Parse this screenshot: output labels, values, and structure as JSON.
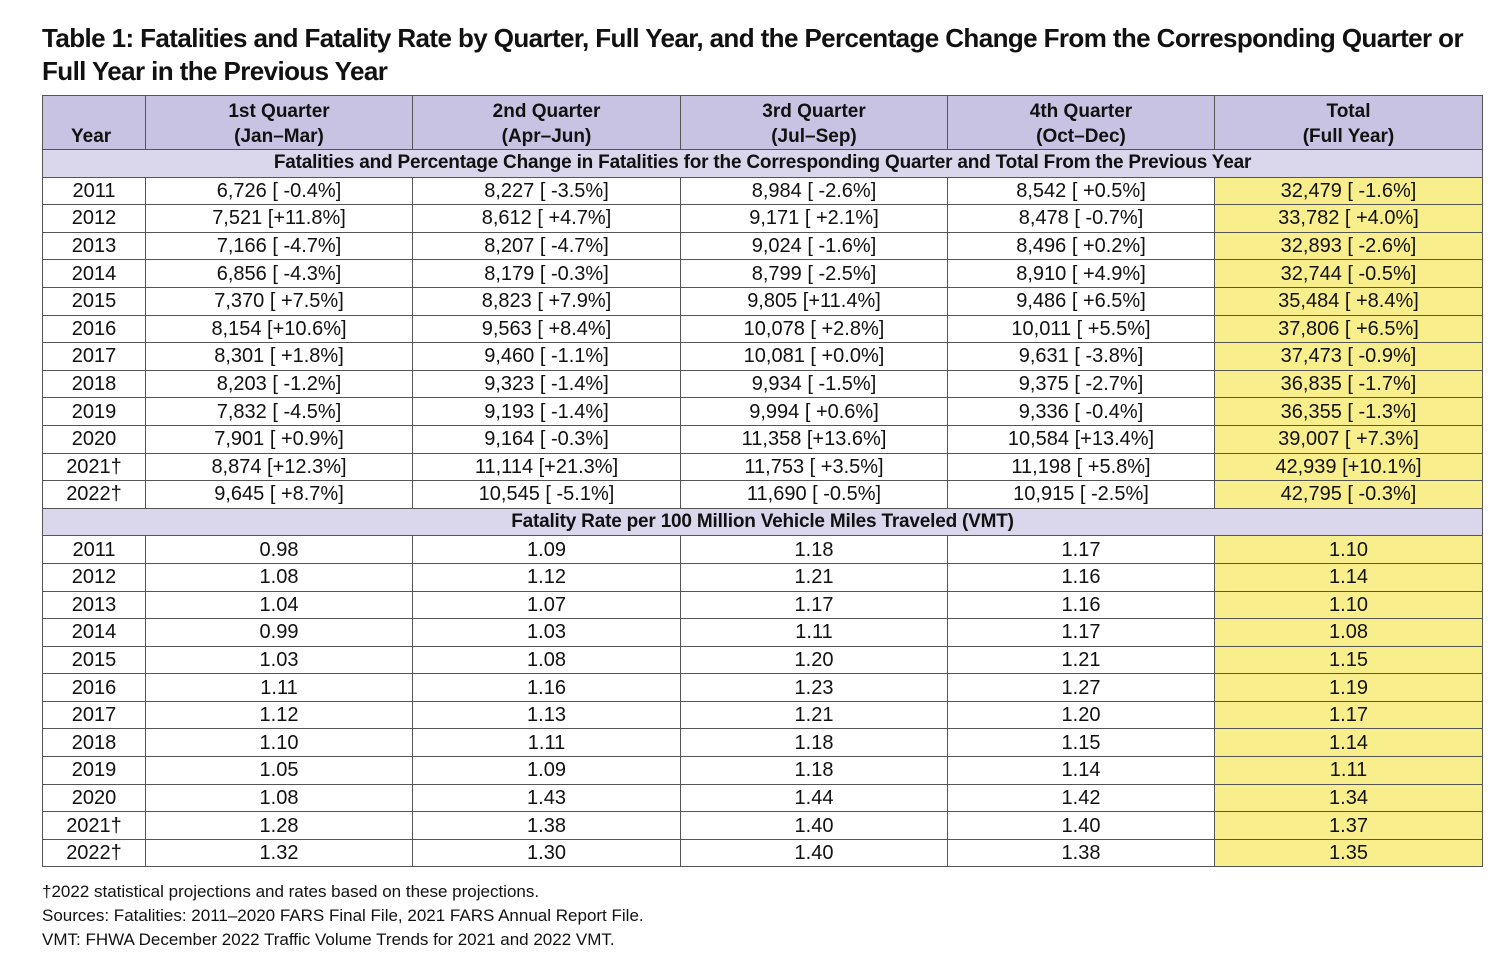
{
  "title": "Table 1: Fatalities and Fatality Rate by Quarter, Full Year, and the Percentage Change From the Corresponding Quarter or Full Year in the Previous Year",
  "table": {
    "header": [
      [
        "Year"
      ],
      [
        "1st Quarter",
        "(Jan–Mar)"
      ],
      [
        "2nd Quarter",
        "(Apr–Jun)"
      ],
      [
        "3rd Quarter",
        "(Jul–Sep)"
      ],
      [
        "4th Quarter",
        "(Oct–Dec)"
      ],
      [
        "Total",
        "(Full Year)"
      ]
    ],
    "sections": [
      {
        "title": "Fatalities and Percentage Change in Fatalities for the Corresponding Quarter and Total From the Previous Year",
        "rows": [
          [
            "2011",
            "6,726 [ -0.4%]",
            "8,227 [ -3.5%]",
            "8,984 [ -2.6%]",
            "8,542 [ +0.5%]",
            "32,479 [ -1.6%]"
          ],
          [
            "2012",
            "7,521 [+11.8%]",
            "8,612 [ +4.7%]",
            "9,171 [ +2.1%]",
            "8,478 [ -0.7%]",
            "33,782 [ +4.0%]"
          ],
          [
            "2013",
            "7,166 [ -4.7%]",
            "8,207 [ -4.7%]",
            "9,024 [ -1.6%]",
            "8,496 [ +0.2%]",
            "32,893 [ -2.6%]"
          ],
          [
            "2014",
            "6,856 [ -4.3%]",
            "8,179 [ -0.3%]",
            "8,799 [ -2.5%]",
            "8,910 [ +4.9%]",
            "32,744 [ -0.5%]"
          ],
          [
            "2015",
            "7,370 [ +7.5%]",
            "8,823 [ +7.9%]",
            "9,805 [+11.4%]",
            "9,486 [ +6.5%]",
            "35,484 [ +8.4%]"
          ],
          [
            "2016",
            "8,154 [+10.6%]",
            "9,563 [ +8.4%]",
            "10,078 [ +2.8%]",
            "10,011 [ +5.5%]",
            "37,806 [ +6.5%]"
          ],
          [
            "2017",
            "8,301 [ +1.8%]",
            "9,460 [ -1.1%]",
            "10,081 [ +0.0%]",
            "9,631 [ -3.8%]",
            "37,473 [ -0.9%]"
          ],
          [
            "2018",
            "8,203 [ -1.2%]",
            "9,323 [ -1.4%]",
            "9,934 [ -1.5%]",
            "9,375 [ -2.7%]",
            "36,835 [ -1.7%]"
          ],
          [
            "2019",
            "7,832 [ -4.5%]",
            "9,193 [ -1.4%]",
            "9,994 [ +0.6%]",
            "9,336 [ -0.4%]",
            "36,355 [ -1.3%]"
          ],
          [
            "2020",
            "7,901 [ +0.9%]",
            "9,164 [ -0.3%]",
            "11,358 [+13.6%]",
            "10,584 [+13.4%]",
            "39,007 [ +7.3%]"
          ],
          [
            "2021†",
            "8,874 [+12.3%]",
            "11,114 [+21.3%]",
            "11,753 [ +3.5%]",
            "11,198 [ +5.8%]",
            "42,939 [+10.1%]"
          ],
          [
            "2022†",
            "9,645 [ +8.7%]",
            "10,545 [ -5.1%]",
            "11,690 [ -0.5%]",
            "10,915 [ -2.5%]",
            "42,795 [ -0.3%]"
          ]
        ]
      },
      {
        "title": "Fatality Rate per 100 Million Vehicle Miles Traveled (VMT)",
        "rows": [
          [
            "2011",
            "0.98",
            "1.09",
            "1.18",
            "1.17",
            "1.10"
          ],
          [
            "2012",
            "1.08",
            "1.12",
            "1.21",
            "1.16",
            "1.14"
          ],
          [
            "2013",
            "1.04",
            "1.07",
            "1.17",
            "1.16",
            "1.10"
          ],
          [
            "2014",
            "0.99",
            "1.03",
            "1.11",
            "1.17",
            "1.08"
          ],
          [
            "2015",
            "1.03",
            "1.08",
            "1.20",
            "1.21",
            "1.15"
          ],
          [
            "2016",
            "1.11",
            "1.16",
            "1.23",
            "1.27",
            "1.19"
          ],
          [
            "2017",
            "1.12",
            "1.13",
            "1.21",
            "1.20",
            "1.17"
          ],
          [
            "2018",
            "1.10",
            "1.11",
            "1.18",
            "1.15",
            "1.14"
          ],
          [
            "2019",
            "1.05",
            "1.09",
            "1.18",
            "1.14",
            "1.11"
          ],
          [
            "2020",
            "1.08",
            "1.43",
            "1.44",
            "1.42",
            "1.34"
          ],
          [
            "2021†",
            "1.28",
            "1.38",
            "1.40",
            "1.40",
            "1.37"
          ],
          [
            "2022†",
            "1.32",
            "1.30",
            "1.40",
            "1.38",
            "1.35"
          ]
        ]
      }
    ]
  },
  "notes": [
    "†2022 statistical projections and rates based on these projections.",
    "Sources: Fatalities: 2011–2020 FARS Final File, 2021 FARS Annual Report File.",
    "VMT: FHWA December 2022 Traffic Volume Trends for 2021 and 2022 VMT."
  ]
}
